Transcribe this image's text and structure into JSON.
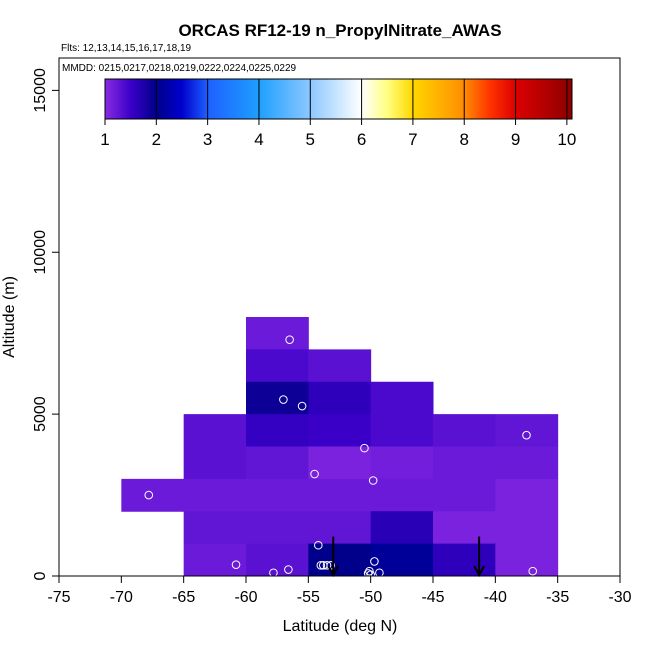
{
  "chart_data": {
    "type": "heatmap",
    "title": "ORCAS RF12-19 n_PropylNitrate_AWAS",
    "flights_label": "Flts: 12,13,14,15,16,17,18,19",
    "dates_label": "MMDD: 0215,0217,0218,0219,0222,0224,0225,0229",
    "xlabel": "Latitude (deg N)",
    "ylabel": "Altitude (m)",
    "xlim": [
      -75,
      -30
    ],
    "ylim": [
      0,
      16000
    ],
    "x_ticks": [
      -75,
      -70,
      -65,
      -60,
      -55,
      -50,
      -45,
      -40,
      -35,
      -30
    ],
    "x_tick_labels": [
      "-75",
      "-70",
      "-65",
      "-60",
      "-55",
      "-50",
      "-45",
      "-40",
      "-35",
      "-30"
    ],
    "y_ticks": [
      0,
      5000,
      10000,
      15000
    ],
    "y_tick_labels": [
      "0",
      "5000",
      "10000",
      "15000"
    ],
    "colorbar": {
      "min": 1,
      "max": 10.1,
      "ticks": [
        1,
        2,
        3,
        4,
        5,
        6,
        7,
        8,
        9,
        10
      ],
      "tick_labels": [
        "1",
        "2",
        "3",
        "4",
        "5",
        "6",
        "7",
        "8",
        "9",
        "10"
      ],
      "stops": [
        {
          "value": 1.0,
          "color": "#8a2be2"
        },
        {
          "value": 1.5,
          "color": "#3a00c8"
        },
        {
          "value": 2.0,
          "color": "#00008b"
        },
        {
          "value": 2.5,
          "color": "#0000cd"
        },
        {
          "value": 3.0,
          "color": "#1e60ff"
        },
        {
          "value": 4.0,
          "color": "#1e9fff"
        },
        {
          "value": 5.0,
          "color": "#8cc8ff"
        },
        {
          "value": 6.0,
          "color": "#ffffff"
        },
        {
          "value": 6.5,
          "color": "#ffff80"
        },
        {
          "value": 7.0,
          "color": "#ffd700"
        },
        {
          "value": 8.0,
          "color": "#ff8c00"
        },
        {
          "value": 8.5,
          "color": "#ff3300"
        },
        {
          "value": 9.0,
          "color": "#dd0000"
        },
        {
          "value": 10.1,
          "color": "#8b0000"
        }
      ]
    },
    "cell_width_deg": 5,
    "cell_height_m": 1000,
    "cells": [
      {
        "lat": -60,
        "alt": 7000,
        "value": 1.2
      },
      {
        "lat": -60,
        "alt": 6000,
        "value": 1.4
      },
      {
        "lat": -55,
        "alt": 6000,
        "value": 1.3
      },
      {
        "lat": -60,
        "alt": 5000,
        "value": 1.9
      },
      {
        "lat": -55,
        "alt": 5000,
        "value": 1.6
      },
      {
        "lat": -50,
        "alt": 5000,
        "value": 1.4
      },
      {
        "lat": -65,
        "alt": 4000,
        "value": 1.3
      },
      {
        "lat": -60,
        "alt": 4000,
        "value": 1.55
      },
      {
        "lat": -55,
        "alt": 4000,
        "value": 1.5
      },
      {
        "lat": -50,
        "alt": 4000,
        "value": 1.4
      },
      {
        "lat": -45,
        "alt": 4000,
        "value": 1.3
      },
      {
        "lat": -40,
        "alt": 4000,
        "value": 1.25
      },
      {
        "lat": -65,
        "alt": 3000,
        "value": 1.3
      },
      {
        "lat": -60,
        "alt": 3000,
        "value": 1.25
      },
      {
        "lat": -55,
        "alt": 3000,
        "value": 1.1
      },
      {
        "lat": -50,
        "alt": 3000,
        "value": 1.15
      },
      {
        "lat": -45,
        "alt": 3000,
        "value": 1.2
      },
      {
        "lat": -40,
        "alt": 3000,
        "value": 1.2
      },
      {
        "lat": -70,
        "alt": 2000,
        "value": 1.2
      },
      {
        "lat": -65,
        "alt": 2000,
        "value": 1.2
      },
      {
        "lat": -60,
        "alt": 2000,
        "value": 1.2
      },
      {
        "lat": -55,
        "alt": 2000,
        "value": 1.2
      },
      {
        "lat": -50,
        "alt": 2000,
        "value": 1.2
      },
      {
        "lat": -45,
        "alt": 2000,
        "value": 1.2
      },
      {
        "lat": -40,
        "alt": 2000,
        "value": 1.1
      },
      {
        "lat": -65,
        "alt": 1000,
        "value": 1.25
      },
      {
        "lat": -60,
        "alt": 1000,
        "value": 1.25
      },
      {
        "lat": -55,
        "alt": 1000,
        "value": 1.25
      },
      {
        "lat": -50,
        "alt": 1000,
        "value": 1.65
      },
      {
        "lat": -45,
        "alt": 1000,
        "value": 1.1
      },
      {
        "lat": -40,
        "alt": 1000,
        "value": 1.1
      },
      {
        "lat": -65,
        "alt": 0,
        "value": 1.2
      },
      {
        "lat": -60,
        "alt": 0,
        "value": 1.3
      },
      {
        "lat": -55,
        "alt": 0,
        "value": 2.0
      },
      {
        "lat": -50,
        "alt": 0,
        "value": 2.1
      },
      {
        "lat": -45,
        "alt": 0,
        "value": 1.6
      },
      {
        "lat": -40,
        "alt": 0,
        "value": 1.1
      }
    ],
    "sample_points": [
      {
        "lat": -56.5,
        "alt": 7300
      },
      {
        "lat": -57.0,
        "alt": 5450
      },
      {
        "lat": -55.5,
        "alt": 5250
      },
      {
        "lat": -50.5,
        "alt": 3950
      },
      {
        "lat": -37.5,
        "alt": 4350
      },
      {
        "lat": -54.5,
        "alt": 3150
      },
      {
        "lat": -49.8,
        "alt": 2950
      },
      {
        "lat": -67.8,
        "alt": 2500
      },
      {
        "lat": -54.2,
        "alt": 950
      },
      {
        "lat": -60.8,
        "alt": 350
      },
      {
        "lat": -57.8,
        "alt": 100
      },
      {
        "lat": -56.6,
        "alt": 200
      },
      {
        "lat": -54.0,
        "alt": 330
      },
      {
        "lat": -53.8,
        "alt": 330
      },
      {
        "lat": -53.5,
        "alt": 330
      },
      {
        "lat": -53.2,
        "alt": 330
      },
      {
        "lat": -49.7,
        "alt": 450
      },
      {
        "lat": -50.2,
        "alt": 80
      },
      {
        "lat": -50.0,
        "alt": 40
      },
      {
        "lat": -49.3,
        "alt": 100
      },
      {
        "lat": -50.1,
        "alt": 150
      },
      {
        "lat": -37.0,
        "alt": 150
      }
    ],
    "arrows": [
      {
        "lat": -53.0,
        "alt_top": 600,
        "alt_bottom": 0
      },
      {
        "lat": -41.3,
        "alt_top": 600,
        "alt_bottom": 0
      }
    ]
  }
}
